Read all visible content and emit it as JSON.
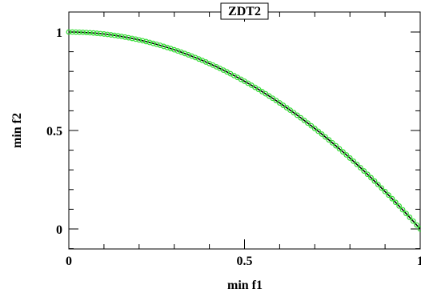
{
  "chart_data": {
    "type": "scatter",
    "title": "ZDT2",
    "xlabel": "min f1",
    "ylabel": "min f2",
    "xlim": [
      0,
      1
    ],
    "ylim": [
      -0.1,
      1.05
    ],
    "x_ticks": [
      0,
      0.5,
      1
    ],
    "x_tick_labels": [
      "0",
      "0.5",
      "1"
    ],
    "y_ticks": [
      0,
      0.5,
      1
    ],
    "y_tick_labels": [
      "0",
      "0.5",
      "1"
    ],
    "grid": false,
    "series": [
      {
        "kind": "line",
        "color": "#000000",
        "x": [
          0,
          0.02,
          0.04,
          0.06,
          0.08,
          0.1,
          0.12,
          0.14,
          0.16,
          0.18,
          0.2,
          0.22,
          0.24,
          0.26,
          0.28,
          0.3,
          0.32,
          0.34,
          0.36,
          0.38,
          0.4,
          0.42,
          0.44,
          0.46,
          0.48,
          0.5,
          0.52,
          0.54,
          0.56,
          0.58,
          0.6,
          0.62,
          0.64,
          0.66,
          0.68,
          0.7,
          0.72,
          0.74,
          0.76,
          0.78,
          0.8,
          0.82,
          0.84,
          0.86,
          0.88,
          0.9,
          0.92,
          0.94,
          0.96,
          0.98,
          1
        ],
        "y": [
          1,
          0.9996,
          0.9984,
          0.9964,
          0.9936,
          0.99,
          0.9856,
          0.9804,
          0.9744,
          0.9676,
          0.96,
          0.9516,
          0.9424,
          0.9324,
          0.9216,
          0.91,
          0.8976,
          0.8844,
          0.8704,
          0.8556,
          0.84,
          0.8236,
          0.8064,
          0.7884,
          0.7696,
          0.75,
          0.7296,
          0.7084,
          0.6864,
          0.6636,
          0.64,
          0.6156,
          0.5904,
          0.5644,
          0.5376,
          0.51,
          0.4816,
          0.4524,
          0.4224,
          0.3916,
          0.36,
          0.3276,
          0.2944,
          0.2604,
          0.2256,
          0.19,
          0.1536,
          0.1164,
          0.0784,
          0.0396,
          0
        ]
      },
      {
        "kind": "markers",
        "color": "#33dd33",
        "x": [
          0,
          0.01,
          0.02,
          0.03,
          0.04,
          0.05,
          0.06,
          0.07,
          0.08,
          0.09,
          0.1,
          0.11,
          0.12,
          0.13,
          0.14,
          0.15,
          0.16,
          0.17,
          0.18,
          0.19,
          0.2,
          0.21,
          0.22,
          0.23,
          0.24,
          0.25,
          0.26,
          0.27,
          0.28,
          0.29,
          0.3,
          0.31,
          0.32,
          0.33,
          0.34,
          0.35,
          0.36,
          0.37,
          0.38,
          0.39,
          0.4,
          0.41,
          0.42,
          0.43,
          0.44,
          0.45,
          0.46,
          0.47,
          0.48,
          0.49,
          0.5,
          0.51,
          0.52,
          0.53,
          0.54,
          0.55,
          0.56,
          0.57,
          0.58,
          0.59,
          0.6,
          0.61,
          0.62,
          0.63,
          0.64,
          0.65,
          0.66,
          0.67,
          0.68,
          0.69,
          0.7,
          0.71,
          0.72,
          0.73,
          0.74,
          0.75,
          0.76,
          0.77,
          0.78,
          0.79,
          0.8,
          0.81,
          0.82,
          0.83,
          0.84,
          0.85,
          0.86,
          0.87,
          0.88,
          0.89,
          0.9,
          0.91,
          0.92,
          0.93,
          0.94,
          0.95,
          0.96,
          0.97,
          0.98,
          0.99,
          1
        ],
        "y": [
          1,
          0.9999,
          0.9996,
          0.9991,
          0.9984,
          0.9975,
          0.9964,
          0.9951,
          0.9936,
          0.9919,
          0.99,
          0.9879,
          0.9856,
          0.9831,
          0.9804,
          0.9775,
          0.9744,
          0.9711,
          0.9676,
          0.9639,
          0.96,
          0.9559,
          0.9516,
          0.9471,
          0.9424,
          0.9375,
          0.9324,
          0.9271,
          0.9216,
          0.9159,
          0.91,
          0.9039,
          0.8976,
          0.8911,
          0.8844,
          0.8775,
          0.8704,
          0.8631,
          0.8556,
          0.8479,
          0.84,
          0.8319,
          0.8236,
          0.8151,
          0.8064,
          0.7975,
          0.7884,
          0.7791,
          0.7696,
          0.7599,
          0.75,
          0.7399,
          0.7296,
          0.7191,
          0.7084,
          0.6975,
          0.6864,
          0.6751,
          0.6636,
          0.6519,
          0.64,
          0.6279,
          0.6156,
          0.6031,
          0.5904,
          0.5775,
          0.5644,
          0.5511,
          0.5376,
          0.5239,
          0.51,
          0.4959,
          0.4816,
          0.4671,
          0.4524,
          0.4375,
          0.4224,
          0.4071,
          0.3916,
          0.3759,
          0.36,
          0.3439,
          0.3276,
          0.3111,
          0.2944,
          0.2775,
          0.2604,
          0.2431,
          0.2256,
          0.2079,
          0.19,
          0.1719,
          0.1536,
          0.1351,
          0.1164,
          0.0975,
          0.0784,
          0.0591,
          0.0396,
          0.0199,
          0
        ]
      }
    ]
  }
}
